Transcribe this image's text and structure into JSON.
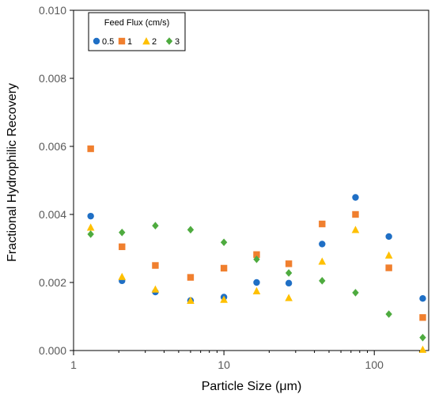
{
  "chart_data": {
    "type": "scatter",
    "title": "",
    "xlabel": "Particle Size (μm)",
    "ylabel": "Fractional Hydrophilic Recovery",
    "xscale": "log",
    "xlim": [
      1,
      230
    ],
    "ylim": [
      0,
      0.01
    ],
    "x_ticks": [
      1,
      10,
      100
    ],
    "x_tick_labels": [
      "1",
      "10",
      "100"
    ],
    "y_ticks": [
      0,
      0.002,
      0.004,
      0.006,
      0.008,
      0.01
    ],
    "y_tick_labels": [
      "0.000",
      "0.002",
      "0.004",
      "0.006",
      "0.008",
      "0.010"
    ],
    "grid": false,
    "legend": {
      "title": "Feed Flux (cm/s)",
      "placement": "top-left"
    },
    "x": [
      1.3,
      2.1,
      3.5,
      6,
      10,
      16.5,
      27,
      45,
      75,
      125,
      210
    ],
    "series": [
      {
        "name": "0.5",
        "marker": "circle",
        "color": "#1f6fc5",
        "values": [
          0.00395,
          0.00205,
          0.00172,
          0.00147,
          0.00157,
          0.002,
          0.00198,
          0.00313,
          0.0045,
          0.00335,
          0.00153
        ]
      },
      {
        "name": "1",
        "marker": "square",
        "color": "#f07f2e",
        "values": [
          0.00593,
          0.00305,
          0.0025,
          0.00215,
          0.00242,
          0.00282,
          0.00255,
          0.00372,
          0.004,
          0.00243,
          0.00097
        ]
      },
      {
        "name": "2",
        "marker": "triangle",
        "color": "#ffc000",
        "values": [
          0.00362,
          0.00217,
          0.0018,
          0.00147,
          0.0015,
          0.00175,
          0.00155,
          0.00262,
          0.00355,
          0.0028,
          3e-05
        ]
      },
      {
        "name": "3",
        "marker": "diamond",
        "color": "#4eab3f",
        "values": [
          0.00342,
          0.00347,
          0.00367,
          0.00355,
          0.00318,
          0.00268,
          0.00228,
          0.00205,
          0.0017,
          0.00107,
          0.00038
        ]
      }
    ]
  }
}
